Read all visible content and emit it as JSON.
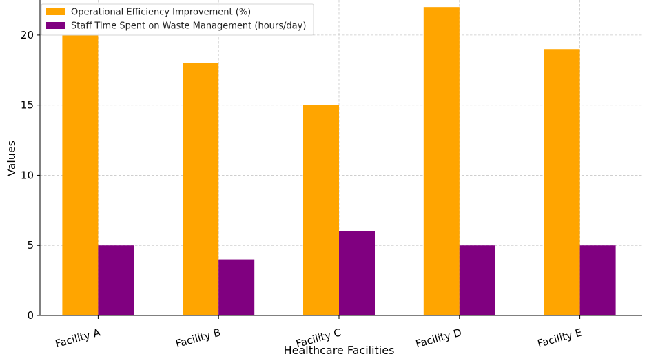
{
  "chart_data": {
    "type": "bar",
    "title": "",
    "xlabel": "Healthcare Facilities",
    "ylabel": "Values",
    "categories": [
      "Facility A",
      "Facility B",
      "Facility C",
      "Facility D",
      "Facility E"
    ],
    "series": [
      {
        "name": "Operational Efficiency Improvement (%)",
        "color": "#FFA500",
        "values": [
          20,
          18,
          15,
          22,
          19
        ]
      },
      {
        "name": "Staff Time Spent on Waste Management (hours/day)",
        "color": "#800080",
        "values": [
          5,
          4,
          6,
          5,
          5
        ]
      }
    ],
    "y_ticks": [
      0,
      5,
      10,
      15,
      20
    ],
    "ylim": [
      0,
      22.5
    ],
    "grid": true,
    "legend_position": "top-left",
    "x_tick_rotation": "rotated"
  }
}
